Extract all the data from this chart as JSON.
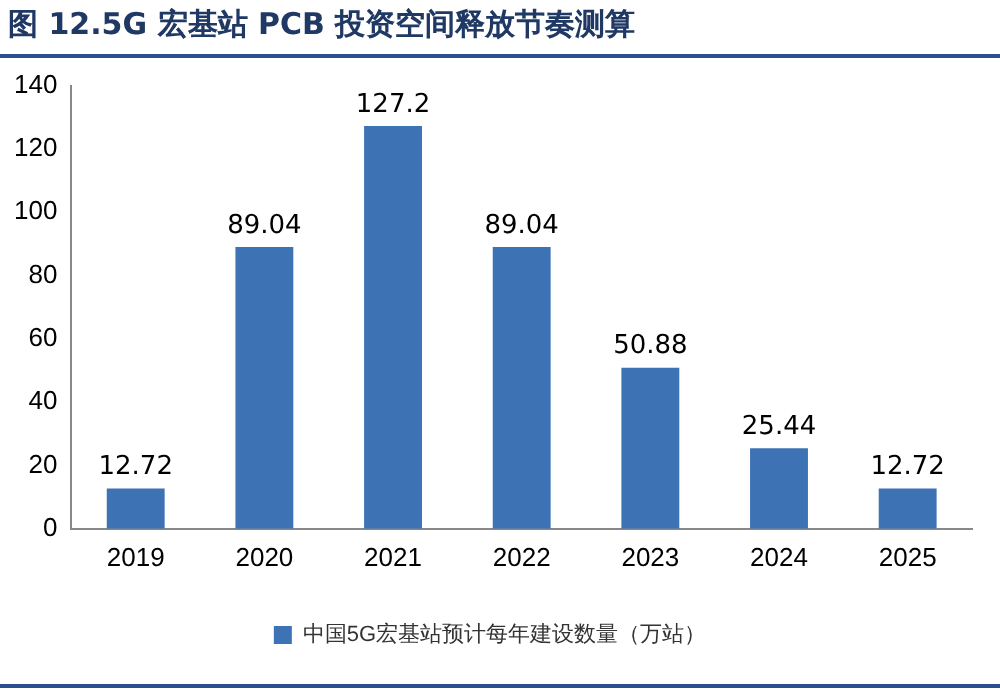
{
  "chart_data": {
    "type": "bar",
    "title": "图 12.5G 宏基站 PCB 投资空间释放节奏测算",
    "categories": [
      "2019",
      "2020",
      "2021",
      "2022",
      "2023",
      "2024",
      "2025"
    ],
    "series": [
      {
        "name": "中国5G宏基站预计每年建设数量（万站）",
        "color": "#3d72b4",
        "values": [
          12.72,
          89.04,
          127.2,
          89.04,
          50.88,
          25.44,
          12.72
        ]
      }
    ],
    "ylim": [
      0,
      140
    ],
    "yticks": [
      0,
      20,
      40,
      60,
      80,
      100,
      120,
      140
    ],
    "grid": false,
    "legend": "bottom",
    "data_labels": true
  }
}
